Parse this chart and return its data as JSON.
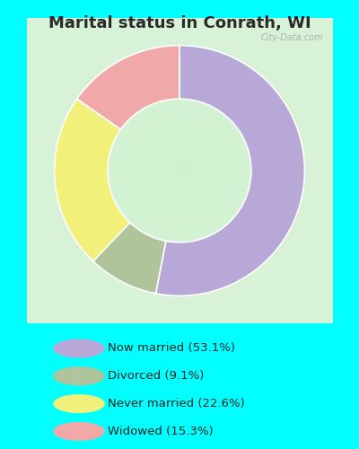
{
  "title": "Marital status in Conrath, WI",
  "slices": [
    53.1,
    9.1,
    22.6,
    15.3
  ],
  "labels": [
    "Now married (53.1%)",
    "Divorced (9.1%)",
    "Never married (22.6%)",
    "Widowed (15.3%)"
  ],
  "colors": [
    "#b8a8d8",
    "#afc49a",
    "#f0f07a",
    "#f0a8a8"
  ],
  "startangle": 90,
  "bg_color": "#00ffff",
  "chart_bg_color": "#d6eed6",
  "title_fontsize": 13,
  "donut_width": 0.35,
  "watermark": "City-Data.com",
  "watermark_color": "#aaaaaa"
}
